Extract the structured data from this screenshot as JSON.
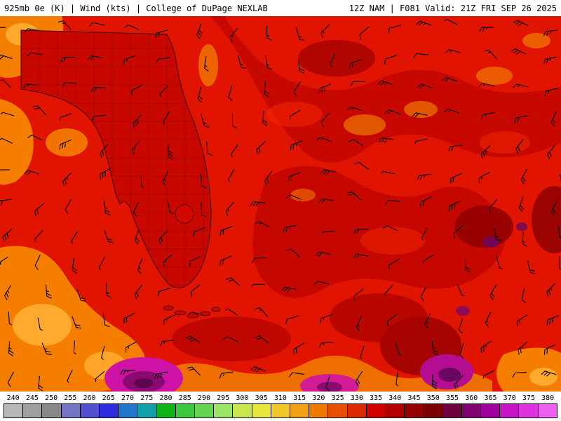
{
  "header": {
    "left": "925mb θe (K) | Wind (kts) | College of DuPage NEXLAB",
    "right": "12Z NAM | F081 Valid: 21Z FRI SEP 26 2025"
  },
  "map": {
    "parameter": "925mb equivalent potential temperature (K), filled contours",
    "overlay": "Wind barbs (kts)",
    "region": "Florida and adjacent Gulf of Mexico / Atlantic waters",
    "wind_barbs": {
      "color": "#000000"
    },
    "palette": {
      "base_red": "#e01400",
      "dark_red": "#c00500",
      "maroon": "#8f0000",
      "orange": "#f57d00",
      "bright_orange": "#ffaa2e",
      "magenta": "#cf12a6",
      "purple": "#5c0650",
      "coast_outline": "#3c0000"
    }
  },
  "colorbar": {
    "labels": [
      "240",
      "245",
      "250",
      "255",
      "260",
      "265",
      "270",
      "275",
      "280",
      "285",
      "290",
      "295",
      "300",
      "305",
      "310",
      "315",
      "320",
      "325",
      "330",
      "335",
      "340",
      "345",
      "350",
      "355",
      "360",
      "365",
      "370",
      "375",
      "380"
    ],
    "colors": [
      "#b8b8b8",
      "#a0a0a0",
      "#888888",
      "#7474c4",
      "#5050d0",
      "#2e2ee0",
      "#2277cc",
      "#11a0aa",
      "#10b414",
      "#3cc83c",
      "#66d650",
      "#98e664",
      "#c8e650",
      "#e8e63c",
      "#f0c828",
      "#f0a014",
      "#ee7800",
      "#e65000",
      "#dc2800",
      "#d20000",
      "#b40000",
      "#960000",
      "#7a0000",
      "#6e0040",
      "#800070",
      "#a000a0",
      "#c814c8",
      "#e032e0",
      "#f060f0"
    ]
  }
}
